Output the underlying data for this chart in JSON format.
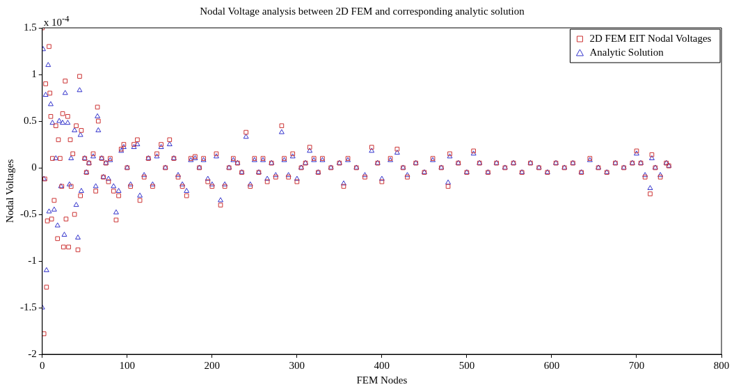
{
  "chart_data": {
    "type": "scatter",
    "title": "Nodal Voltage analysis between 2D FEM and corresponding analytic solution",
    "xlabel": "FEM Nodes",
    "ylabel": "Nodal Voltages",
    "annotations": [
      "x 10$^{-4}$"
    ],
    "xlim": [
      0,
      800
    ],
    "xticks": [
      0,
      100,
      200,
      300,
      400,
      500,
      600,
      700,
      800
    ],
    "ylim": [
      -2,
      1.5
    ],
    "yticks": [
      -2,
      -1.5,
      -1,
      -0.5,
      0,
      0.5,
      1,
      1.5
    ],
    "grid": false,
    "legend": "top right",
    "series": [
      {
        "name": "2D FEM EIT Nodal Voltages",
        "color": "#cc3333",
        "marker": "square",
        "x": [
          0,
          2,
          3,
          4,
          5,
          6,
          8,
          9,
          10,
          11,
          12,
          14,
          16,
          18,
          19,
          21,
          23,
          24,
          25,
          27,
          28,
          30,
          31,
          33,
          34,
          36,
          38,
          40,
          42,
          44,
          45,
          46,
          50,
          52,
          55,
          60,
          63,
          65,
          66,
          70,
          72,
          75,
          78,
          80,
          84,
          87,
          90,
          93,
          96,
          100,
          104,
          108,
          112,
          115,
          120,
          125,
          130,
          135,
          140,
          145,
          150,
          155,
          160,
          165,
          170,
          175,
          180,
          185,
          190,
          195,
          200,
          205,
          210,
          215,
          220,
          225,
          230,
          235,
          240,
          245,
          250,
          255,
          260,
          265,
          270,
          275,
          282,
          285,
          290,
          295,
          300,
          305,
          310,
          315,
          320,
          325,
          330,
          340,
          350,
          355,
          360,
          370,
          380,
          388,
          395,
          400,
          410,
          418,
          425,
          430,
          440,
          450,
          460,
          470,
          478,
          480,
          490,
          500,
          508,
          515,
          525,
          535,
          545,
          555,
          565,
          575,
          585,
          595,
          605,
          615,
          625,
          635,
          645,
          655,
          665,
          675,
          685,
          695,
          700,
          705,
          710,
          716,
          718,
          722,
          728,
          735,
          738
        ],
        "values": [
          1.5,
          -1.78,
          -0.12,
          0.9,
          -1.28,
          -0.57,
          1.3,
          0.8,
          0.55,
          -0.55,
          0.1,
          -0.35,
          0.45,
          -0.76,
          0.3,
          0.1,
          -0.2,
          0.58,
          -0.85,
          0.93,
          -0.55,
          0.55,
          -0.85,
          0.3,
          -0.2,
          0.15,
          -0.5,
          0.45,
          -0.88,
          0.98,
          -0.3,
          0.4,
          0.1,
          -0.05,
          0.05,
          0.15,
          -0.25,
          0.65,
          0.5,
          0.1,
          -0.1,
          0.05,
          -0.15,
          0.1,
          -0.25,
          -0.56,
          -0.3,
          0.2,
          0.25,
          0,
          -0.2,
          0.25,
          0.3,
          -0.35,
          -0.1,
          0.1,
          -0.2,
          0.15,
          0.25,
          0,
          0.3,
          0.1,
          -0.1,
          -0.2,
          -0.3,
          0.1,
          0.12,
          0,
          0.1,
          -0.15,
          -0.2,
          0.15,
          -0.4,
          -0.2,
          0,
          0.1,
          0.05,
          -0.05,
          0.38,
          -0.2,
          0.1,
          -0.05,
          0.1,
          -0.15,
          0.05,
          -0.1,
          0.45,
          0.1,
          -0.1,
          0.15,
          -0.15,
          0,
          0.05,
          0.22,
          0.1,
          -0.05,
          0.1,
          0,
          0.05,
          -0.2,
          0.1,
          0,
          -0.1,
          0.22,
          0.05,
          -0.15,
          0.1,
          0.2,
          0,
          -0.1,
          0.05,
          -0.05,
          0.1,
          0,
          -0.2,
          0.15,
          0.05,
          -0.05,
          0.18,
          0.05,
          -0.05,
          0.05,
          0,
          0.05,
          -0.05,
          0.05,
          0,
          -0.05,
          0.05,
          0,
          0.05,
          -0.05,
          0.1,
          0,
          -0.05,
          0.05,
          0,
          0.05,
          0.18,
          0.05,
          -0.1,
          -0.28,
          0.14,
          0,
          -0.1,
          0.05,
          0.02
        ]
      },
      {
        "name": "Analytic Solution",
        "color": "#3333cc",
        "marker": "triangle",
        "x": [
          0,
          1,
          2,
          4,
          5,
          7,
          8,
          10,
          12,
          14,
          16,
          18,
          20,
          22,
          24,
          26,
          27,
          30,
          32,
          34,
          38,
          40,
          42,
          44,
          45,
          46,
          50,
          52,
          55,
          60,
          63,
          65,
          66,
          70,
          72,
          75,
          78,
          80,
          84,
          87,
          90,
          93,
          96,
          100,
          104,
          108,
          112,
          115,
          120,
          125,
          130,
          135,
          140,
          145,
          150,
          155,
          160,
          165,
          170,
          175,
          180,
          185,
          190,
          195,
          200,
          205,
          210,
          215,
          220,
          225,
          230,
          235,
          240,
          245,
          250,
          255,
          260,
          265,
          270,
          275,
          282,
          285,
          290,
          295,
          300,
          305,
          310,
          315,
          320,
          325,
          330,
          340,
          350,
          355,
          360,
          370,
          380,
          388,
          395,
          400,
          410,
          418,
          425,
          430,
          440,
          450,
          460,
          470,
          478,
          480,
          490,
          500,
          508,
          515,
          525,
          535,
          545,
          555,
          565,
          575,
          585,
          595,
          605,
          615,
          625,
          635,
          645,
          655,
          665,
          675,
          685,
          695,
          700,
          705,
          710,
          716,
          718,
          722,
          728,
          735,
          738
        ],
        "values": [
          -1.5,
          1.27,
          -0.12,
          0.78,
          -1.1,
          1.1,
          -0.47,
          0.68,
          0.48,
          -0.45,
          0.1,
          -0.62,
          0.5,
          -0.2,
          0.48,
          -0.72,
          0.8,
          0.48,
          -0.18,
          0.1,
          0.4,
          -0.4,
          -0.75,
          0.83,
          0.35,
          -0.25,
          0.1,
          -0.05,
          0.05,
          0.12,
          -0.2,
          0.55,
          0.4,
          0.1,
          -0.1,
          0.05,
          -0.12,
          0.08,
          -0.2,
          -0.48,
          -0.25,
          0.18,
          0.22,
          0,
          -0.18,
          0.22,
          0.25,
          -0.3,
          -0.08,
          0.1,
          -0.18,
          0.12,
          0.22,
          0,
          0.25,
          0.1,
          -0.08,
          -0.18,
          -0.25,
          0.08,
          0.1,
          0,
          0.08,
          -0.12,
          -0.18,
          0.12,
          -0.35,
          -0.18,
          0,
          0.08,
          0.05,
          -0.05,
          0.33,
          -0.18,
          0.08,
          -0.05,
          0.08,
          -0.12,
          0.05,
          -0.08,
          0.38,
          0.08,
          -0.08,
          0.12,
          -0.12,
          0,
          0.05,
          0.18,
          0.08,
          -0.05,
          0.08,
          0,
          0.05,
          -0.17,
          0.08,
          0,
          -0.08,
          0.18,
          0.05,
          -0.12,
          0.08,
          0.16,
          0,
          -0.08,
          0.05,
          -0.05,
          0.08,
          0,
          -0.16,
          0.12,
          0.05,
          -0.05,
          0.15,
          0.05,
          -0.05,
          0.05,
          0,
          0.05,
          -0.05,
          0.05,
          0,
          -0.05,
          0.05,
          0,
          0.05,
          -0.05,
          0.08,
          0,
          -0.05,
          0.05,
          0,
          0.05,
          0.15,
          0.05,
          -0.08,
          -0.22,
          0.1,
          0,
          -0.08,
          0.05,
          0.02
        ]
      }
    ]
  }
}
